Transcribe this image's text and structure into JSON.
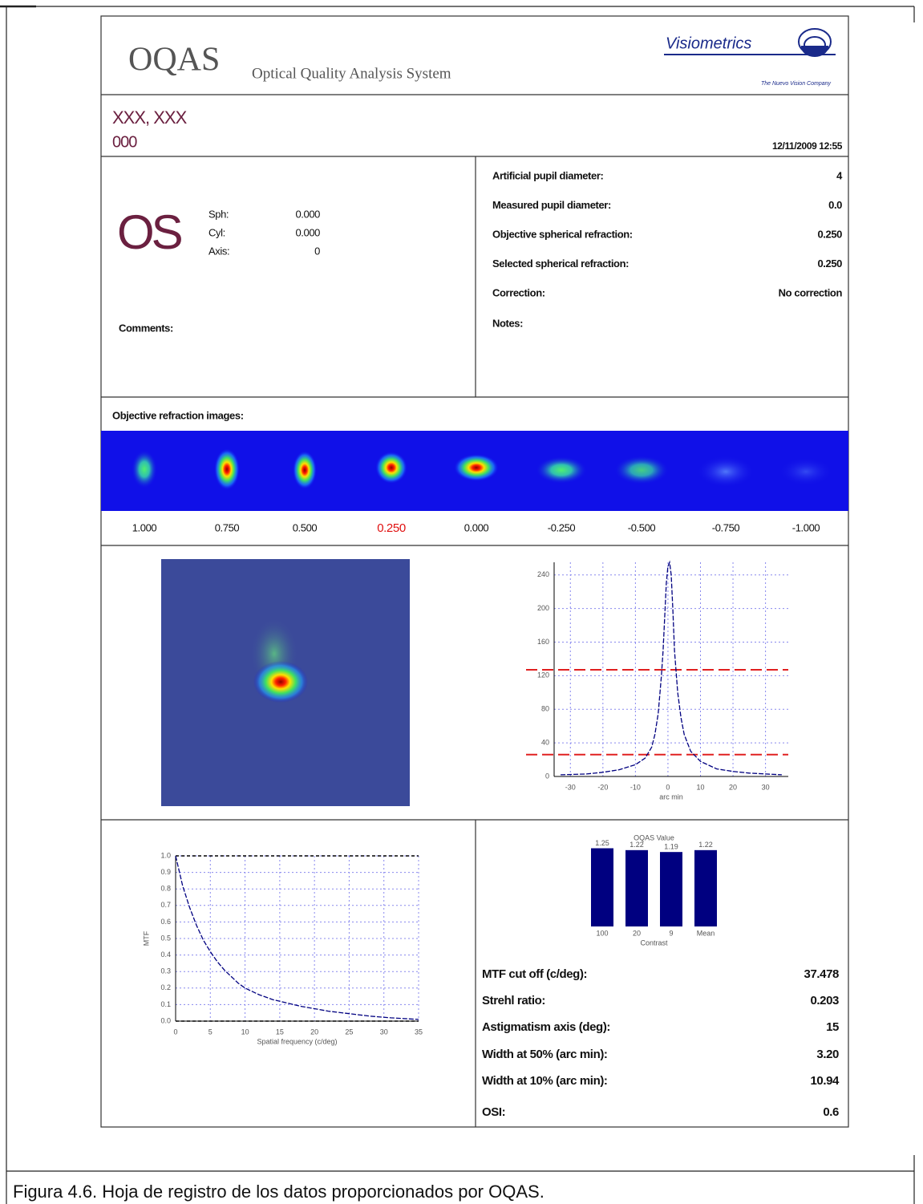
{
  "header": {
    "title": "OQAS",
    "subtitle": "Optical Quality Analysis System",
    "logo": "Visiometrics",
    "tagline": "The Nuevo Vision Company"
  },
  "patient": {
    "name": "XXX, XXX",
    "id": "000",
    "date": "12/11/2009 12:55"
  },
  "eye": {
    "label": "OS",
    "refraction": [
      [
        "Sph:",
        "0.000"
      ],
      [
        "Cyl:",
        "0.000"
      ],
      [
        "Axis:",
        "0"
      ]
    ]
  },
  "comments_label": "Comments:",
  "measurements": [
    [
      "Artificial pupil diameter:",
      "4"
    ],
    [
      "Measured pupil diameter:",
      "0.0"
    ],
    [
      "Objective spherical refraction:",
      "0.250"
    ],
    [
      "Selected spherical refraction:",
      "0.250"
    ],
    [
      "Correction:",
      "No correction"
    ]
  ],
  "notes_label": "Notes:",
  "refraction_images": {
    "title": "Objective refraction images:",
    "labels": [
      "1.000",
      "0.750",
      "0.500",
      "0.250",
      "0.000",
      "-0.250",
      "-0.500",
      "-0.750",
      "-1.000"
    ]
  },
  "chart_data": [
    {
      "type": "line",
      "x_label": "arc min",
      "xlim": [
        -35,
        37
      ],
      "ylim": [
        0,
        255
      ],
      "xticks": [
        -30,
        -20,
        -10,
        0,
        10,
        20,
        30
      ],
      "yticks": [
        0,
        40,
        80,
        120,
        160,
        200,
        240
      ],
      "grid": true,
      "color": "#000080",
      "x": [
        -33,
        -25,
        -20,
        -15,
        -10,
        -7,
        -5,
        -4,
        -3,
        -2,
        -1.5,
        -1,
        -0.5,
        0,
        0.5,
        1,
        1.5,
        2,
        3,
        4,
        5,
        7,
        10,
        15,
        20,
        25,
        30,
        35
      ],
      "values": [
        2,
        3,
        5,
        8,
        14,
        22,
        35,
        50,
        75,
        120,
        150,
        190,
        230,
        250,
        255,
        240,
        200,
        150,
        100,
        70,
        50,
        30,
        18,
        9,
        6,
        4,
        3,
        2
      ],
      "hlines": {
        "values": [
          127,
          26
        ],
        "color": "#e02020"
      }
    },
    {
      "type": "line",
      "x_label": "Spatial frequency (c/deg)",
      "y_label": "MTF",
      "xlim": [
        0,
        35
      ],
      "ylim": [
        0,
        1
      ],
      "xticks": [
        0,
        5,
        10,
        15,
        20,
        25,
        30,
        35
      ],
      "yticks": [
        {
          "value": 0,
          "label": "0.0"
        },
        0.1,
        0.2,
        0.3,
        0.4,
        0.5,
        0.6,
        0.7,
        0.8,
        0.9,
        {
          "value": 1,
          "label": "1.0"
        }
      ],
      "grid": true,
      "color": "#000080",
      "x": [
        0,
        1,
        2,
        3,
        4,
        5,
        6,
        7,
        8,
        9,
        10,
        12,
        14,
        16,
        18,
        20,
        22,
        25,
        28,
        31,
        35
      ],
      "values": [
        1.0,
        0.82,
        0.69,
        0.58,
        0.49,
        0.42,
        0.36,
        0.31,
        0.27,
        0.23,
        0.2,
        0.16,
        0.13,
        0.11,
        0.09,
        0.075,
        0.06,
        0.045,
        0.03,
        0.02,
        0.01
      ],
      "hlines": {
        "values": [
          1,
          0
        ],
        "color": "#000000"
      }
    },
    {
      "type": "bar",
      "title": "OQAS Value",
      "x_label": "Contrast",
      "categories": [
        "100",
        "20",
        "9",
        "Mean"
      ],
      "values": [
        1.25,
        1.22,
        1.19,
        1.22
      ],
      "color": "#000080"
    }
  ],
  "stats": [
    [
      "MTF cut off (c/deg):",
      "37.478"
    ],
    [
      "Strehl ratio:",
      "0.203"
    ],
    [
      "Astigmatism axis (deg):",
      "15"
    ],
    [
      "Width at 50% (arc min):",
      "3.20"
    ],
    [
      "Width at 10% (arc min):",
      "10.94"
    ],
    [
      "OSI:",
      "0.6"
    ]
  ],
  "caption": "Figura 4.6. Hoja de registro de los datos proporcionados por OQAS."
}
